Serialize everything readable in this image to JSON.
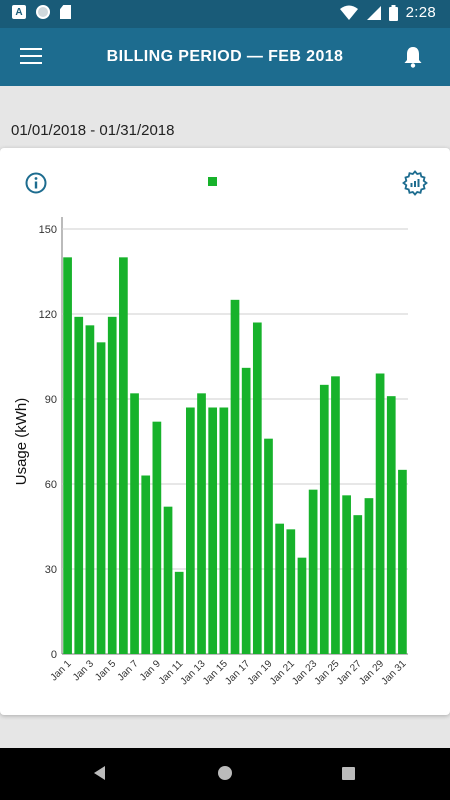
{
  "status_bar": {
    "time": "2:28",
    "left_icons": [
      "a-badge-icon",
      "circle-app-icon",
      "sd-card-icon"
    ],
    "right_icons": [
      "wifi-icon",
      "cellular-icon",
      "battery-icon"
    ]
  },
  "app_bar": {
    "title": "BILLING PERIOD  —  FEB 2018",
    "menu_icon": "hamburger-menu-icon",
    "notification_icon": "bell-icon"
  },
  "billing_range": "01/01/2018 - 01/31/2018",
  "card": {
    "info_icon": "info-icon",
    "settings_icon": "chart-settings-icon",
    "legend_color": "#17b22b"
  },
  "chart_data": {
    "type": "bar",
    "ylabel": "Usage (kWh)",
    "xlabel": "",
    "ylim": [
      0,
      150
    ],
    "yticks": [
      0,
      30,
      60,
      90,
      120,
      150
    ],
    "color": "#17b22b",
    "grid": "horizontal",
    "categories": [
      "Jan 1",
      "Jan 2",
      "Jan 3",
      "Jan 4",
      "Jan 5",
      "Jan 6",
      "Jan 7",
      "Jan 8",
      "Jan 9",
      "Jan 10",
      "Jan 11",
      "Jan 12",
      "Jan 13",
      "Jan 14",
      "Jan 15",
      "Jan 16",
      "Jan 17",
      "Jan 18",
      "Jan 19",
      "Jan 20",
      "Jan 21",
      "Jan 22",
      "Jan 23",
      "Jan 24",
      "Jan 25",
      "Jan 26",
      "Jan 27",
      "Jan 28",
      "Jan 29",
      "Jan 30",
      "Jan 31"
    ],
    "values": [
      140,
      119,
      116,
      110,
      119,
      140,
      92,
      63,
      82,
      52,
      29,
      87,
      92,
      87,
      87,
      125,
      101,
      117,
      76,
      46,
      44,
      34,
      58,
      95,
      98,
      56,
      49,
      55,
      99,
      91,
      65
    ],
    "tick_labels": [
      "Jan 1",
      "Jan 3",
      "Jan 5",
      "Jan 7",
      "Jan 9",
      "Jan 11",
      "Jan 13",
      "Jan 15",
      "Jan 17",
      "Jan 19",
      "Jan 21",
      "Jan 23",
      "Jan 25",
      "Jan 27",
      "Jan 29",
      "Jan 31"
    ]
  },
  "nav_bar": {
    "back_icon": "back-triangle-icon",
    "home_icon": "home-circle-icon",
    "recent_icon": "recent-apps-square-icon"
  }
}
